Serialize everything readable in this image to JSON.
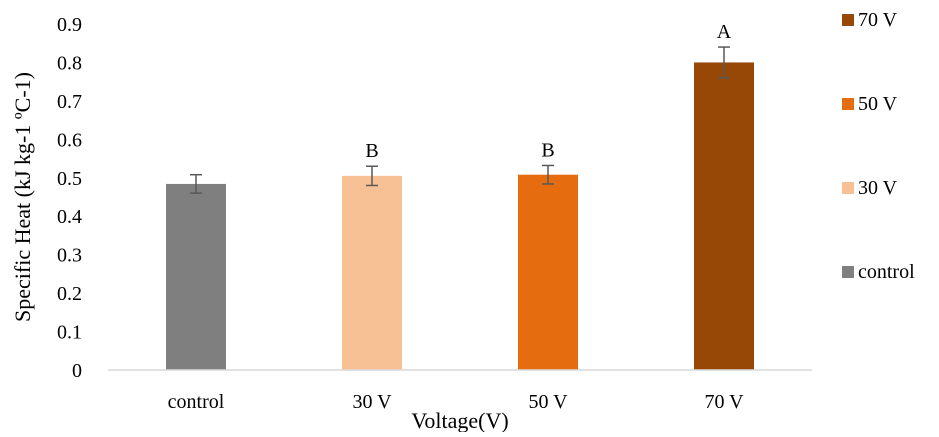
{
  "chart_data": {
    "type": "bar",
    "categories": [
      "control",
      "30 V",
      "50 V",
      "70 V"
    ],
    "values": [
      0.484,
      0.505,
      0.508,
      0.8
    ],
    "errors": [
      0.024,
      0.025,
      0.024,
      0.04
    ],
    "significance_letters": [
      "",
      "B",
      "B",
      "A"
    ],
    "colors": [
      "#7f7f7f",
      "#f8c195",
      "#e56d10",
      "#974706"
    ],
    "title": "",
    "xlabel": "Voltage(V)",
    "ylabel": "Specific  Heat (kJ kg-1 ºC-1)",
    "ylim": [
      0,
      0.9
    ],
    "yticks": [
      "0",
      "0.1",
      "0.2",
      "0.3",
      "0.4",
      "0.5",
      "0.6",
      "0.7",
      "0.8",
      "0.9"
    ],
    "grid": false,
    "legend_position": "right",
    "legend": [
      {
        "label": "70 V",
        "color": "#974706"
      },
      {
        "label": "50 V",
        "color": "#e56d10"
      },
      {
        "label": "30 V",
        "color": "#f8c195"
      },
      {
        "label": "control",
        "color": "#7f7f7f"
      }
    ]
  }
}
